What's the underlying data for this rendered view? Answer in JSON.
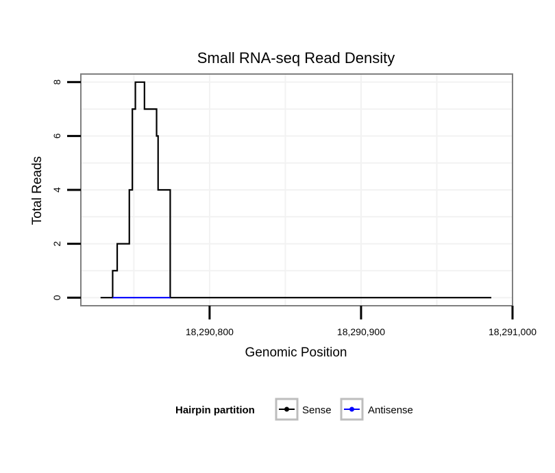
{
  "chart_data": {
    "type": "line",
    "title": "Small RNA-seq Read Density",
    "xlabel": "Genomic Position",
    "ylabel": "Total Reads",
    "xlim": [
      18290715,
      18291000
    ],
    "ylim": [
      -0.3,
      8.3
    ],
    "x_ticks": [
      18290800,
      18290900,
      18291000
    ],
    "x_tick_labels": [
      "18,290,800",
      "18,290,900",
      "18,291,000"
    ],
    "y_ticks": [
      0,
      2,
      4,
      6,
      8
    ],
    "y_tick_labels": [
      "0",
      "2",
      "4",
      "6",
      "8"
    ],
    "grid": true,
    "legend": {
      "title": "Hairpin partition",
      "position": "bottom",
      "entries": [
        "Sense",
        "Antisense"
      ]
    },
    "series": [
      {
        "name": "Sense",
        "color": "#000000",
        "x": [
          18290728,
          18290736,
          18290736,
          18290739,
          18290739,
          18290743,
          18290743,
          18290747,
          18290747,
          18290749,
          18290749,
          18290751,
          18290751,
          18290752,
          18290752,
          18290757,
          18290757,
          18290765,
          18290765,
          18290766,
          18290766,
          18290768,
          18290768,
          18290774,
          18290774,
          18290986
        ],
        "y": [
          0,
          0,
          1,
          1,
          2,
          2,
          2,
          2,
          4,
          4,
          7,
          7,
          8,
          8,
          8,
          8,
          7,
          7,
          6,
          6,
          4,
          4,
          4,
          4,
          0,
          0
        ]
      },
      {
        "name": "Antisense",
        "color": "#0000ff",
        "x": [
          18290736,
          18290774
        ],
        "y": [
          0,
          0
        ]
      }
    ]
  }
}
